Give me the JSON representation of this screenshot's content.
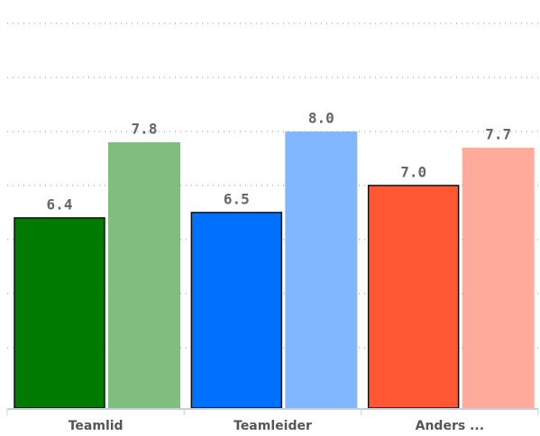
{
  "chart_data": {
    "type": "bar",
    "categories": [
      "Teamlid",
      "Teamleider",
      "Anders ..."
    ],
    "series": [
      {
        "values": [
          6.4,
          6.5,
          7.0
        ],
        "value_labels": [
          "6.4",
          "6.5",
          "7.0"
        ],
        "colors": [
          "#007a00",
          "#0070ff",
          "#ff5733"
        ]
      },
      {
        "values": [
          7.8,
          8.0,
          7.7
        ],
        "value_labels": [
          "7.8",
          "8.0",
          "7.7"
        ],
        "colors": [
          "#80be80",
          "#80b7ff",
          "#ffab99"
        ]
      }
    ],
    "ylim": [
      2.88,
      10
    ],
    "yticks": [
      4,
      5,
      6,
      7,
      8,
      9,
      10
    ],
    "grid": true
  }
}
